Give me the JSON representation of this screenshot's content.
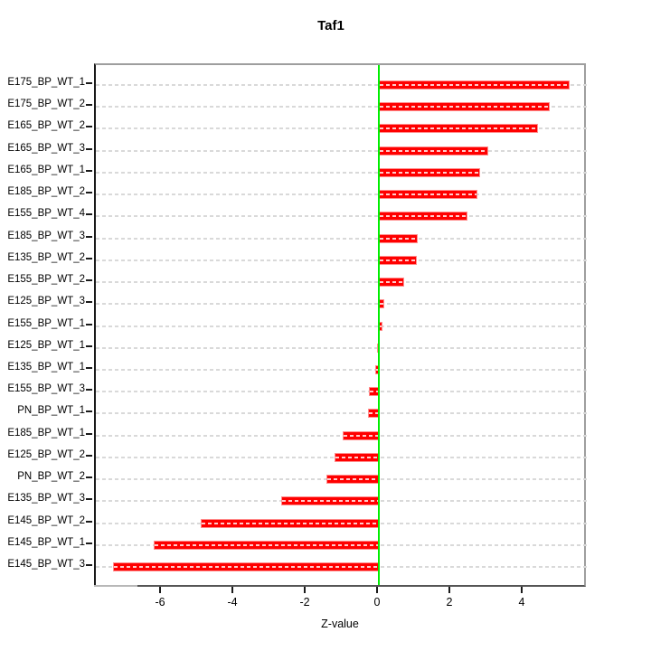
{
  "figure": {
    "title": "Taf1",
    "xlabel": "Z-value"
  },
  "chart_data": {
    "type": "bar",
    "orientation": "horizontal",
    "title": "Taf1",
    "xlabel": "Z-value",
    "ylabel": "",
    "legend": "none",
    "grid": "horizontal-dashed",
    "categories": [
      "E175_BP_WT_1",
      "E175_BP_WT_2",
      "E165_BP_WT_2",
      "E165_BP_WT_3",
      "E165_BP_WT_1",
      "E185_BP_WT_2",
      "E155_BP_WT_4",
      "E185_BP_WT_3",
      "E135_BP_WT_2",
      "E155_BP_WT_2",
      "E125_BP_WT_3",
      "E155_BP_WT_1",
      "E125_BP_WT_1",
      "E135_BP_WT_1",
      "E155_BP_WT_3",
      "PN_BP_WT_1",
      "E185_BP_WT_1",
      "E125_BP_WT_2",
      "PN_BP_WT_2",
      "E135_BP_WT_3",
      "E145_BP_WT_2",
      "E145_BP_WT_1",
      "E145_BP_WT_3"
    ],
    "values": [
      5.28,
      4.72,
      4.4,
      3.03,
      2.8,
      2.73,
      2.45,
      1.07,
      1.05,
      0.7,
      0.14,
      0.09,
      -0.04,
      -0.09,
      -0.27,
      -0.31,
      -1.0,
      -1.23,
      -1.46,
      -2.7,
      -4.92,
      -6.22,
      -7.35
    ],
    "xlim": [
      -7.825,
      5.775
    ],
    "xticks": [
      -6,
      -4,
      -2,
      0,
      2,
      4
    ],
    "zero_line": 0,
    "colors": {
      "bar": "#ff0000",
      "bar_edge": "#ff8d8d",
      "zero_line": "#00ee00",
      "grid_line": "#d9d9d9",
      "box": "#9e9e9e",
      "axis": "#1a1a1a"
    }
  }
}
